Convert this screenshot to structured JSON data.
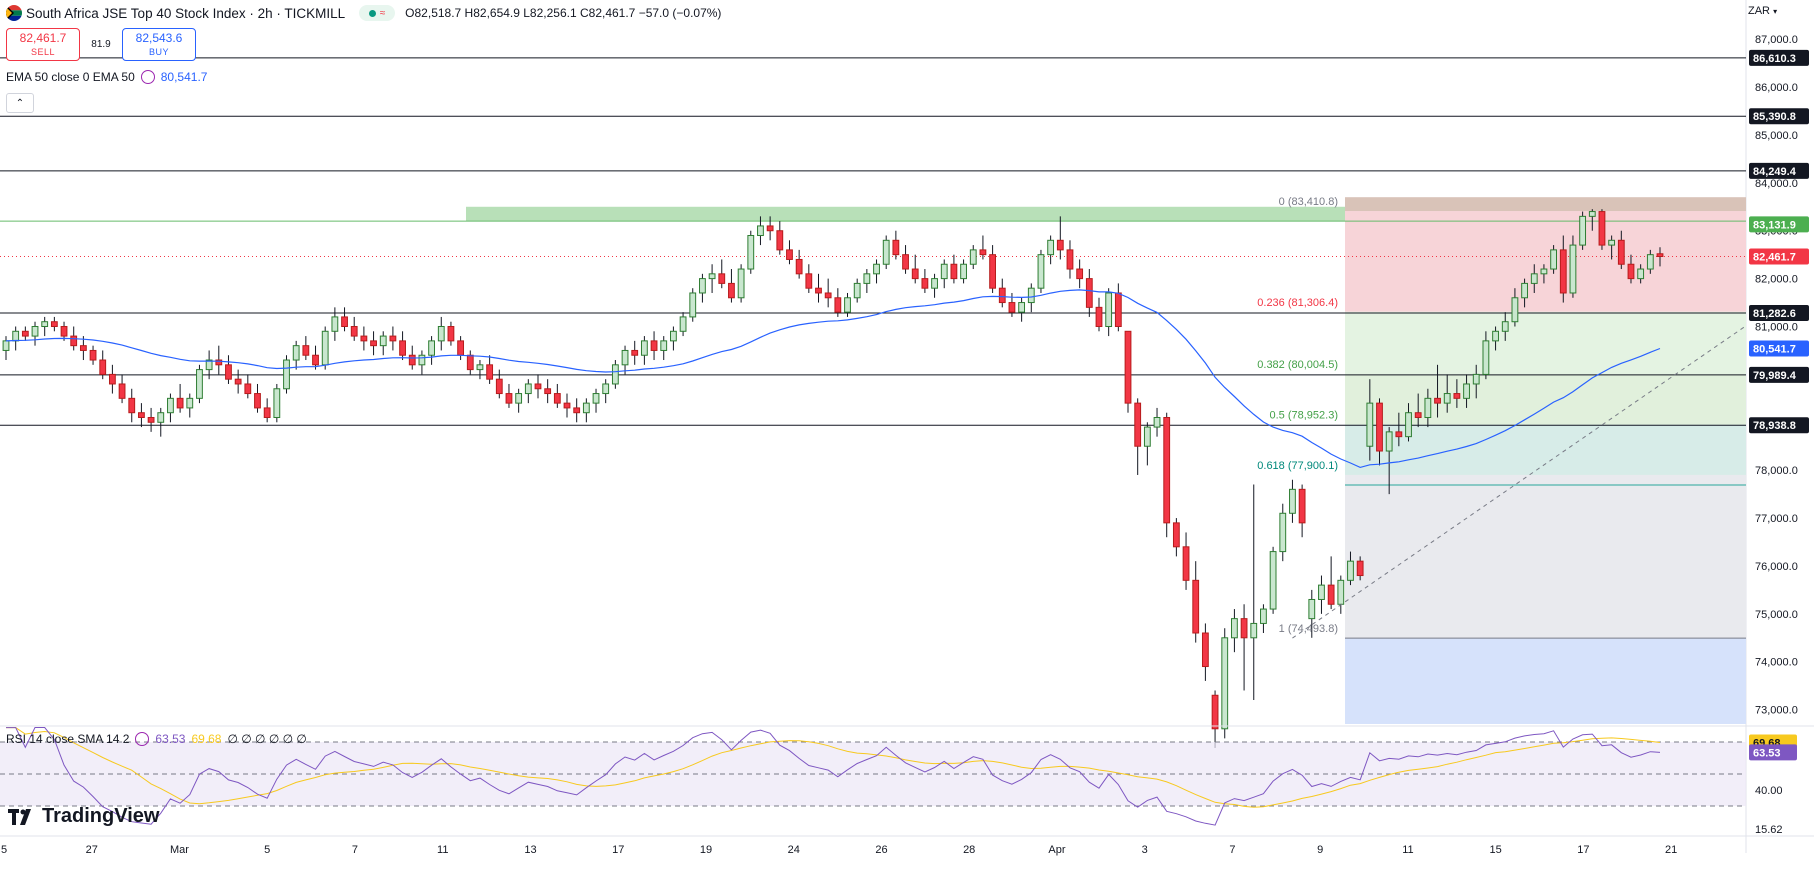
{
  "header": {
    "title": "South Africa JSE Top 40 Stock Index · 2h · TICKMILL",
    "pill_symbol": "≈",
    "ohlc": "O82,518.7 H82,654.9 L82,256.1 C82,461.7 −57.0 (−0.07%)"
  },
  "trade": {
    "sell_price": "82,461.7",
    "sell_label": "SELL",
    "spread": "81.9",
    "buy_price": "82,543.6",
    "buy_label": "BUY"
  },
  "ema_legend": {
    "label": "EMA 50 close 0 EMA 50",
    "value": "80,541.7"
  },
  "rsi_legend": {
    "label": "RSI 14 close SMA 14 2",
    "rsi": "63.53",
    "sma": "69.68",
    "extras": "∅ ∅ ∅ ∅ ∅ ∅"
  },
  "collapse_label": "⌃",
  "currency": "ZAR",
  "logo": "TradingView",
  "colors": {
    "up": "#089981",
    "down": "#f23645",
    "ema": "#2962ff",
    "rsi": "#7e57c2",
    "rsi_sma": "#f7c91f"
  },
  "chart_data": {
    "type": "candlestick",
    "timeframe": "2h",
    "ylim": [
      72700,
      87400
    ],
    "y_ticks": [
      "87,000.0",
      "86,000.0",
      "85,000.0",
      "84,000.0",
      "83,000.0",
      "82,000.0",
      "81,000.0",
      "80,000.0",
      "79,000.0",
      "78,000.0",
      "77,000.0",
      "76,000.0",
      "75,000.0",
      "74,000.0",
      "73,000.0"
    ],
    "x_ticks": [
      "5",
      "27",
      "Mar",
      "5",
      "7",
      "11",
      "13",
      "17",
      "19",
      "24",
      "26",
      "28",
      "Apr",
      "3",
      "7",
      "9",
      "11",
      "15",
      "17",
      "21"
    ],
    "price_labels": [
      {
        "text": "86,610.3",
        "value": 86610.3
      },
      {
        "text": "85,390.8",
        "value": 85390.8
      },
      {
        "text": "84,249.4",
        "value": 84249.4
      },
      {
        "text": "83,131.9",
        "value": 83131.9
      },
      {
        "text": "82,461.7",
        "value": 82461.7
      },
      {
        "text": "81,282.6",
        "value": 81282.6
      },
      {
        "text": "80,541.7",
        "value": 80541.7
      },
      {
        "text": "79,989.4",
        "value": 79989.4
      },
      {
        "text": "78,938.8",
        "value": 78938.8
      }
    ],
    "horizontal_lines": [
      86610.3,
      85390.8,
      84249.4,
      81282.6,
      79989.4,
      78938.8
    ],
    "fibonacci": [
      {
        "label": "0 (83,410.8)",
        "value": 83410.8
      },
      {
        "label": "0.236 (81,306.4)",
        "value": 81306.4
      },
      {
        "label": "0.382 (80,004.5)",
        "value": 80004.5
      },
      {
        "label": "0.5 (78,952.3)",
        "value": 78952.3
      },
      {
        "label": "0.618 (77,900.1)",
        "value": 77900.1
      },
      {
        "label": "1 (74,493.8)",
        "value": 74493.8
      }
    ],
    "rsi": {
      "ylim": [
        15,
        80
      ],
      "ticks": [
        "40.00",
        "15.62"
      ],
      "labels": [
        "69.68",
        "63.53"
      ],
      "bands": [
        70,
        50,
        30
      ],
      "last": 63.53,
      "sma_last": 69.68
    },
    "candles": [
      [
        80500,
        80800,
        80300,
        80700
      ],
      [
        80700,
        81000,
        80500,
        80900
      ],
      [
        80900,
        81000,
        80700,
        80800
      ],
      [
        80800,
        81100,
        80600,
        81000
      ],
      [
        81000,
        81200,
        80800,
        81100
      ],
      [
        81100,
        81200,
        80900,
        81000
      ],
      [
        81000,
        81100,
        80700,
        80800
      ],
      [
        80800,
        81000,
        80500,
        80600
      ],
      [
        80600,
        80800,
        80300,
        80500
      ],
      [
        80500,
        80600,
        80200,
        80300
      ],
      [
        80300,
        80500,
        79900,
        80000
      ],
      [
        80000,
        80200,
        79600,
        79800
      ],
      [
        79800,
        80000,
        79400,
        79500
      ],
      [
        79500,
        79700,
        79000,
        79200
      ],
      [
        79200,
        79400,
        78900,
        79100
      ],
      [
        79100,
        79300,
        78800,
        79000
      ],
      [
        79000,
        79300,
        78700,
        79200
      ],
      [
        79200,
        79600,
        79000,
        79500
      ],
      [
        79500,
        79800,
        79200,
        79300
      ],
      [
        79300,
        79600,
        79100,
        79500
      ],
      [
        79500,
        80200,
        79400,
        80100
      ],
      [
        80100,
        80500,
        79900,
        80300
      ],
      [
        80300,
        80600,
        80000,
        80200
      ],
      [
        80200,
        80400,
        79800,
        79900
      ],
      [
        79900,
        80100,
        79600,
        79800
      ],
      [
        79800,
        80000,
        79500,
        79600
      ],
      [
        79600,
        79800,
        79200,
        79300
      ],
      [
        79300,
        79500,
        79000,
        79100
      ],
      [
        79100,
        79800,
        79000,
        79700
      ],
      [
        79700,
        80400,
        79600,
        80300
      ],
      [
        80300,
        80700,
        80100,
        80600
      ],
      [
        80600,
        80800,
        80300,
        80400
      ],
      [
        80400,
        80600,
        80100,
        80200
      ],
      [
        80200,
        81000,
        80100,
        80900
      ],
      [
        80900,
        81400,
        80700,
        81200
      ],
      [
        81200,
        81400,
        80900,
        81000
      ],
      [
        81000,
        81200,
        80700,
        80800
      ],
      [
        80800,
        81000,
        80500,
        80700
      ],
      [
        80700,
        80900,
        80400,
        80600
      ],
      [
        80600,
        80900,
        80400,
        80800
      ],
      [
        80800,
        81000,
        80500,
        80700
      ],
      [
        80700,
        80900,
        80300,
        80400
      ],
      [
        80400,
        80600,
        80100,
        80200
      ],
      [
        80200,
        80500,
        80000,
        80400
      ],
      [
        80400,
        80800,
        80200,
        80700
      ],
      [
        80700,
        81200,
        80500,
        81000
      ],
      [
        81000,
        81100,
        80600,
        80700
      ],
      [
        80700,
        80800,
        80300,
        80400
      ],
      [
        80400,
        80500,
        80000,
        80100
      ],
      [
        80100,
        80300,
        79900,
        80200
      ],
      [
        80200,
        80400,
        79800,
        79900
      ],
      [
        79900,
        80100,
        79500,
        79600
      ],
      [
        79600,
        79800,
        79300,
        79400
      ],
      [
        79400,
        79700,
        79200,
        79600
      ],
      [
        79600,
        79900,
        79400,
        79800
      ],
      [
        79800,
        80000,
        79500,
        79700
      ],
      [
        79700,
        79900,
        79400,
        79600
      ],
      [
        79600,
        79800,
        79300,
        79400
      ],
      [
        79400,
        79600,
        79100,
        79300
      ],
      [
        79300,
        79500,
        79000,
        79200
      ],
      [
        79200,
        79500,
        79000,
        79400
      ],
      [
        79400,
        79700,
        79200,
        79600
      ],
      [
        79600,
        79900,
        79400,
        79800
      ],
      [
        79800,
        80300,
        79700,
        80200
      ],
      [
        80200,
        80600,
        80000,
        80500
      ],
      [
        80500,
        80700,
        80200,
        80400
      ],
      [
        80400,
        80800,
        80200,
        80700
      ],
      [
        80700,
        80900,
        80300,
        80500
      ],
      [
        80500,
        80800,
        80300,
        80700
      ],
      [
        80700,
        81000,
        80500,
        80900
      ],
      [
        80900,
        81300,
        80800,
        81200
      ],
      [
        81200,
        81800,
        81100,
        81700
      ],
      [
        81700,
        82100,
        81500,
        82000
      ],
      [
        82000,
        82300,
        81700,
        82100
      ],
      [
        82100,
        82400,
        81800,
        81900
      ],
      [
        81900,
        82200,
        81500,
        81600
      ],
      [
        81600,
        82300,
        81500,
        82200
      ],
      [
        82200,
        83000,
        82100,
        82900
      ],
      [
        82900,
        83300,
        82700,
        83100
      ],
      [
        83100,
        83300,
        82800,
        83000
      ],
      [
        83000,
        83200,
        82500,
        82600
      ],
      [
        82600,
        82800,
        82300,
        82400
      ],
      [
        82400,
        82600,
        82000,
        82100
      ],
      [
        82100,
        82300,
        81700,
        81800
      ],
      [
        81800,
        82100,
        81500,
        81700
      ],
      [
        81700,
        82000,
        81400,
        81600
      ],
      [
        81600,
        81800,
        81200,
        81300
      ],
      [
        81300,
        81700,
        81200,
        81600
      ],
      [
        81600,
        82000,
        81500,
        81900
      ],
      [
        81900,
        82200,
        81700,
        82100
      ],
      [
        82100,
        82400,
        81900,
        82300
      ],
      [
        82300,
        82900,
        82200,
        82800
      ],
      [
        82800,
        83000,
        82400,
        82500
      ],
      [
        82500,
        82700,
        82100,
        82200
      ],
      [
        82200,
        82500,
        81900,
        82000
      ],
      [
        82000,
        82200,
        81700,
        81800
      ],
      [
        81800,
        82100,
        81600,
        82000
      ],
      [
        82000,
        82400,
        81800,
        82300
      ],
      [
        82300,
        82500,
        81900,
        82000
      ],
      [
        82000,
        82400,
        81900,
        82300
      ],
      [
        82300,
        82700,
        82200,
        82600
      ],
      [
        82600,
        82900,
        82400,
        82500
      ],
      [
        82500,
        82700,
        81700,
        81800
      ],
      [
        81800,
        82000,
        81400,
        81500
      ],
      [
        81500,
        81700,
        81200,
        81300
      ],
      [
        81300,
        81600,
        81100,
        81500
      ],
      [
        81500,
        81900,
        81300,
        81800
      ],
      [
        81800,
        82600,
        81700,
        82500
      ],
      [
        82500,
        82900,
        82300,
        82800
      ],
      [
        82800,
        83300,
        82400,
        82600
      ],
      [
        82600,
        82800,
        82000,
        82200
      ],
      [
        82200,
        82400,
        81800,
        82000
      ],
      [
        82000,
        82200,
        81200,
        81400
      ],
      [
        81400,
        81600,
        80900,
        81000
      ],
      [
        81000,
        81800,
        80800,
        81700
      ],
      [
        81700,
        81900,
        80900,
        81000
      ],
      [
        80900,
        80900,
        79200,
        79400
      ],
      [
        79400,
        79500,
        77900,
        78500
      ],
      [
        78500,
        79000,
        78100,
        78900
      ],
      [
        78900,
        79300,
        78700,
        79100
      ],
      [
        79100,
        79200,
        76600,
        76900
      ],
      [
        76900,
        77000,
        76200,
        76400
      ],
      [
        76400,
        76700,
        75500,
        75700
      ],
      [
        75700,
        76100,
        74400,
        74600
      ],
      [
        74600,
        74800,
        73600,
        73900
      ],
      [
        73300,
        73400,
        72200,
        72600
      ],
      [
        72600,
        74700,
        72400,
        74500
      ],
      [
        74500,
        75100,
        74200,
        74900
      ],
      [
        74900,
        75200,
        73400,
        74500
      ],
      [
        74500,
        77700,
        73200,
        74800
      ],
      [
        74800,
        75200,
        74600,
        75100
      ],
      [
        75100,
        76400,
        75000,
        76300
      ],
      [
        76300,
        77300,
        76100,
        77100
      ],
      [
        77100,
        77800,
        76900,
        77600
      ],
      [
        77600,
        77700,
        76600,
        76900
      ],
      [
        74900,
        75500,
        74500,
        75300
      ],
      [
        75300,
        75800,
        75000,
        75600
      ],
      [
        75600,
        76200,
        75100,
        75200
      ],
      [
        75200,
        75800,
        75000,
        75700
      ],
      [
        75700,
        76300,
        75600,
        76100
      ],
      [
        76100,
        76200,
        75700,
        75800
      ],
      [
        78500,
        79900,
        78200,
        79400
      ],
      [
        79400,
        79500,
        78100,
        78400
      ],
      [
        78400,
        78900,
        77500,
        78800
      ],
      [
        78800,
        79200,
        78500,
        78700
      ],
      [
        78700,
        79400,
        78600,
        79200
      ],
      [
        79200,
        79600,
        78900,
        79100
      ],
      [
        79100,
        79700,
        78900,
        79500
      ],
      [
        79500,
        80200,
        79100,
        79400
      ],
      [
        79400,
        80000,
        79200,
        79600
      ],
      [
        79600,
        79900,
        79300,
        79500
      ],
      [
        79500,
        80000,
        79300,
        79800
      ],
      [
        79800,
        80200,
        79500,
        80000
      ],
      [
        80000,
        80900,
        79900,
        80700
      ],
      [
        80700,
        81000,
        80500,
        80900
      ],
      [
        80900,
        81300,
        80700,
        81100
      ],
      [
        81100,
        81800,
        81000,
        81600
      ],
      [
        81600,
        82000,
        81400,
        81900
      ],
      [
        81900,
        82300,
        81700,
        82100
      ],
      [
        82100,
        82300,
        81900,
        82200
      ],
      [
        82200,
        82700,
        82100,
        82600
      ],
      [
        82600,
        82900,
        81500,
        81700
      ],
      [
        81700,
        82900,
        81600,
        82700
      ],
      [
        82700,
        83400,
        82600,
        83300
      ],
      [
        83300,
        83450,
        83000,
        83400
      ],
      [
        83400,
        83450,
        82600,
        82700
      ],
      [
        82700,
        82900,
        82400,
        82800
      ],
      [
        82800,
        83000,
        82200,
        82300
      ],
      [
        82300,
        82500,
        81900,
        82000
      ],
      [
        82000,
        82300,
        81900,
        82200
      ],
      [
        82200,
        82600,
        82100,
        82500
      ],
      [
        82519,
        82655,
        82256,
        82462
      ]
    ],
    "ema50": [
      80541.7
    ],
    "notes": []
  }
}
